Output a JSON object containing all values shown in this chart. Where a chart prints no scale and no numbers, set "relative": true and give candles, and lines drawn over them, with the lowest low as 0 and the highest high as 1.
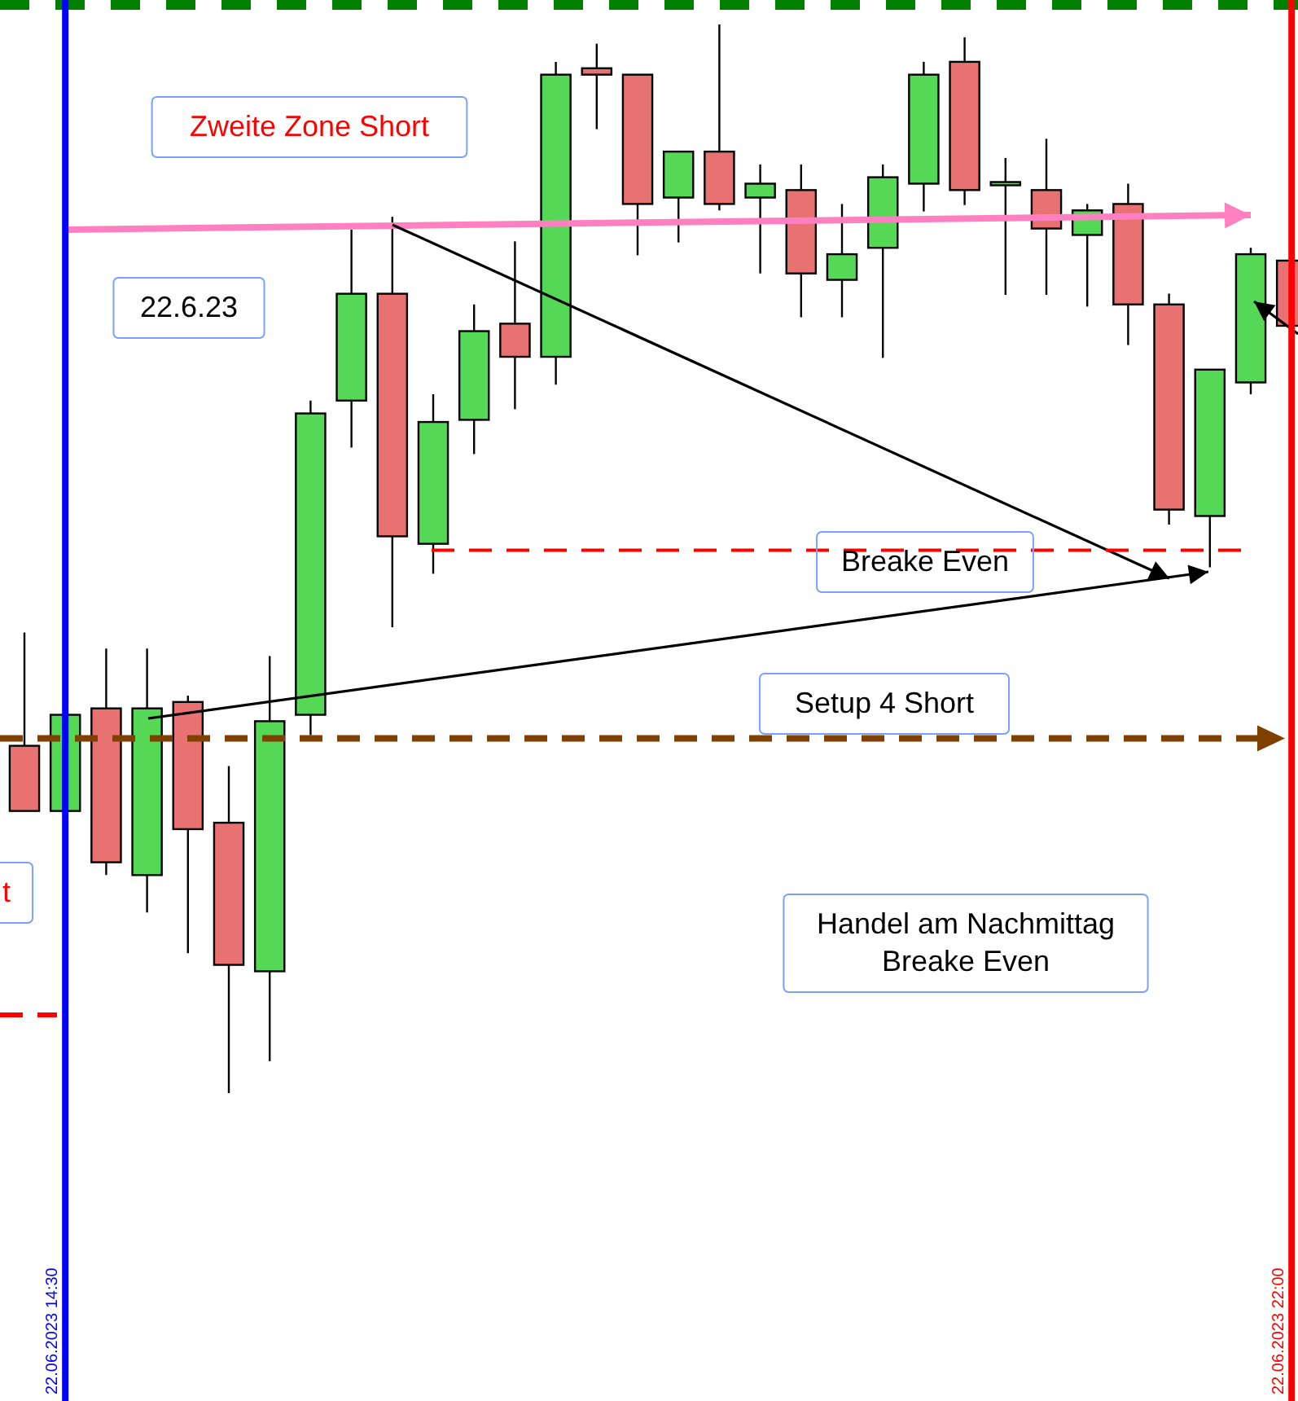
{
  "chart_data": {
    "type": "candlestick",
    "relative": true,
    "categories": [
      null,
      "22.06.2023 14:30",
      null,
      null,
      null,
      null,
      null,
      null,
      null,
      null,
      null,
      null,
      null,
      null,
      null,
      null,
      null,
      null,
      null,
      null,
      null,
      null,
      null,
      null,
      null,
      null,
      null,
      null,
      null,
      null,
      null,
      "22.06.2023 22:00"
    ],
    "ohlc": [
      [
        0.325,
        0.431,
        0.264,
        0.264
      ],
      [
        0.264,
        0.354,
        0.264,
        0.354
      ],
      [
        0.36,
        0.416,
        0.204,
        0.216
      ],
      [
        0.204,
        0.416,
        0.169,
        0.36
      ],
      [
        0.366,
        0.372,
        0.131,
        0.247
      ],
      [
        0.253,
        0.306,
        0,
        0.12
      ],
      [
        0.114,
        0.409,
        0.03,
        0.348
      ],
      [
        0.354,
        0.648,
        0.335,
        0.636
      ],
      [
        0.648,
        0.808,
        0.604,
        0.748
      ],
      [
        0.748,
        0.82,
        0.436,
        0.521
      ],
      [
        0.514,
        0.654,
        0.486,
        0.628
      ],
      [
        0.63,
        0.738,
        0.598,
        0.713
      ],
      [
        0.72,
        0.797,
        0.64,
        0.689
      ],
      [
        0.689,
        0.965,
        0.663,
        0.953
      ],
      [
        0.959,
        0.982,
        0.902,
        0.953
      ],
      [
        0.953,
        0.953,
        0.784,
        0.832
      ],
      [
        0.838,
        0.881,
        0.796,
        0.881
      ],
      [
        0.881,
        1.0,
        0.826,
        0.832
      ],
      [
        0.838,
        0.869,
        0.767,
        0.851
      ],
      [
        0.845,
        0.869,
        0.726,
        0.767
      ],
      [
        0.761,
        0.832,
        0.726,
        0.785
      ],
      [
        0.791,
        0.869,
        0.688,
        0.857
      ],
      [
        0.851,
        0.965,
        0.825,
        0.953
      ],
      [
        0.965,
        0.988,
        0.831,
        0.845
      ],
      [
        0.851,
        0.875,
        0.747,
        0.851
      ],
      [
        0.845,
        0.893,
        0.747,
        0.809
      ],
      [
        0.803,
        0.832,
        0.736,
        0.826
      ],
      [
        0.832,
        0.851,
        0.7,
        0.738
      ],
      [
        0.738,
        0.748,
        0.532,
        0.546
      ],
      [
        0.54,
        0.677,
        0.492,
        0.677
      ],
      [
        0.665,
        0.791,
        0.654,
        0.785
      ],
      [
        0.779,
        0.779,
        0.718,
        0.718
      ]
    ],
    "colors": [
      "#e87272",
      "#55d855",
      "#e87272",
      "#55d855",
      "#e87272",
      "#e87272",
      "#55d855",
      "#55d855",
      "#55d855",
      "#e87272",
      "#55d855",
      "#55d855",
      "#e87272",
      "#55d855",
      "#e87272",
      "#e87272",
      "#55d855",
      "#e87272",
      "#55d855",
      "#e87272",
      "#55d855",
      "#55d855",
      "#55d855",
      "#e87272",
      "#55d855",
      "#e87272",
      "#55d855",
      "#e87272",
      "#e87272",
      "#55d855",
      "#55d855",
      "#e87272"
    ],
    "ref_lines": [
      {
        "axis": "x",
        "value": "22.06.2023 14:30",
        "label": null,
        "color": "#0000ff"
      },
      {
        "axis": "x",
        "value": "22.06.2023 22:00",
        "label": null,
        "color": "#ff0000"
      },
      {
        "axis": "y",
        "value": 0.332,
        "label": null,
        "color": "#804000",
        "line_style": "dashed"
      },
      {
        "axis": "y",
        "value": 0.508,
        "label": null,
        "color": "#ff0000",
        "line_style": "dashed"
      }
    ],
    "annotations": [
      "Zweite Zone Short",
      "22.6.23",
      "Breake Even",
      "Setup 4 Short",
      "Handel am Nachmittag\nBreake Even",
      "t"
    ]
  }
}
